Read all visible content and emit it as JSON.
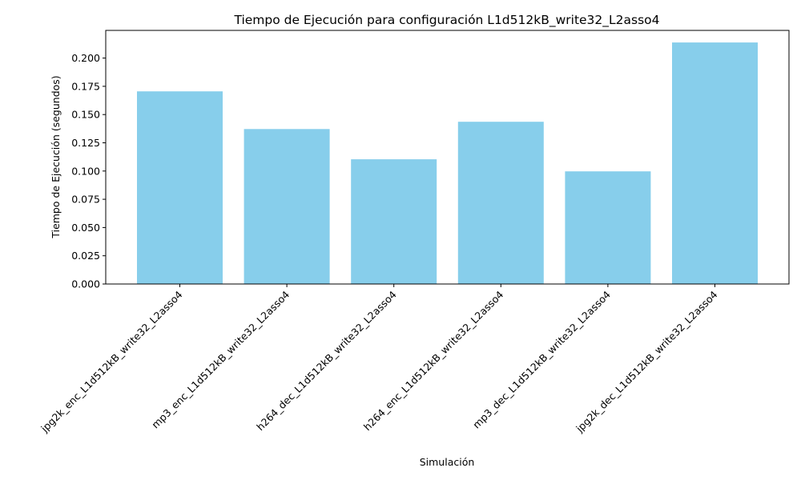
{
  "chart_data": {
    "type": "bar",
    "title": "Tiempo de Ejecución para configuración L1d512kB_write32_L2asso4",
    "xlabel": "Simulación",
    "ylabel": "Tiempo de Ejecución (segundos)",
    "categories": [
      "jpg2k_enc_L1d512kB_write32_L2asso4",
      "mp3_enc_L1d512kB_write32_L2asso4",
      "h264_dec_L1d512kB_write32_L2asso4",
      "h264_enc_L1d512kB_write32_L2asso4",
      "mp3_dec_L1d512kB_write32_L2asso4",
      "jpg2k_dec_L1d512kB_write32_L2asso4"
    ],
    "values": [
      0.1705,
      0.1372,
      0.1104,
      0.1436,
      0.0997,
      0.2138
    ],
    "ylim": [
      0,
      0.2245
    ],
    "yticks": [
      "0.000",
      "0.025",
      "0.050",
      "0.075",
      "0.100",
      "0.125",
      "0.150",
      "0.175",
      "0.200"
    ],
    "bar_color": "#87ceeb",
    "grid": false,
    "legend": "none"
  }
}
